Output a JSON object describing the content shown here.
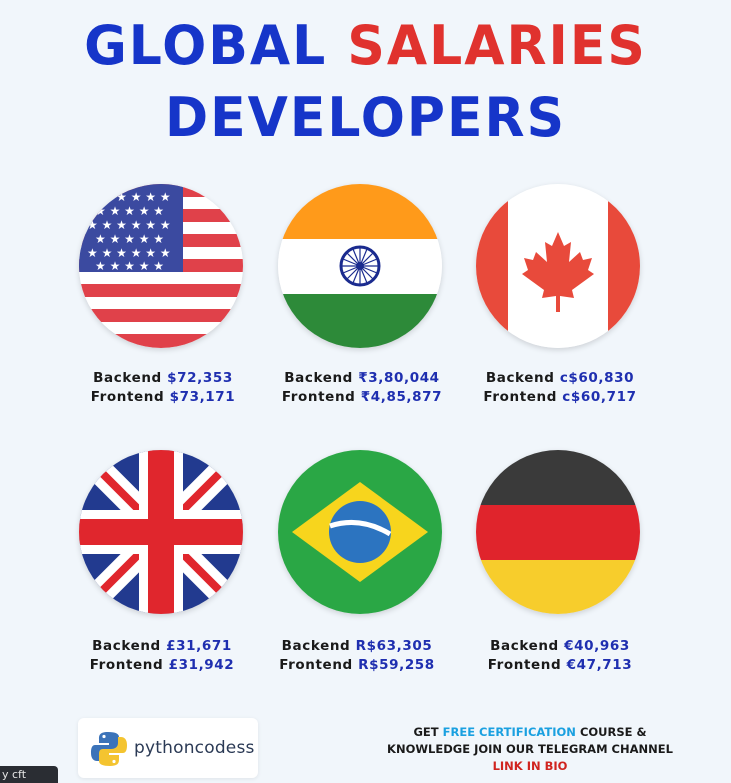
{
  "title": {
    "line1_part1": "GLOBAL",
    "line1_part2": "SALARIES",
    "line2": "DEVELOPERS",
    "colors": {
      "blue": "#1635c9",
      "red": "#e0322e"
    }
  },
  "countries": [
    {
      "flag": "usa-flag",
      "backend_label": "Backend",
      "backend": "$72,353",
      "frontend_label": "Frontend",
      "frontend": "$73,171"
    },
    {
      "flag": "india-flag",
      "backend_label": "Backend",
      "backend": "₹3,80,044",
      "frontend_label": "Frontend",
      "frontend": "₹4,85,877"
    },
    {
      "flag": "canada-flag",
      "backend_label": "Backend",
      "backend": "c$60,830",
      "frontend_label": "Frontend",
      "frontend": "c$60,717"
    },
    {
      "flag": "uk-flag",
      "backend_label": "Backend",
      "backend": "£31,671",
      "frontend_label": "Frontend",
      "frontend": "£31,942"
    },
    {
      "flag": "brazil-flag",
      "backend_label": "Backend",
      "backend": "R$63,305",
      "frontend_label": "Frontend",
      "frontend": "R$59,258"
    },
    {
      "flag": "germany-flag",
      "backend_label": "Backend",
      "backend": "€40,963",
      "frontend_label": "Frontend",
      "frontend": "€47,713"
    }
  ],
  "brand": {
    "icon": "python-logo-icon",
    "name": "pythoncodess"
  },
  "promo": {
    "line1_a": "GET",
    "line1_b": "FREE CERTIFICATION",
    "line1_c": "COURSE &",
    "line2": "KNOWLEDGE JOIN OUR TELEGRAM CHANNEL",
    "line3": "LINK IN BIO"
  },
  "corner_tab": "y   cft"
}
